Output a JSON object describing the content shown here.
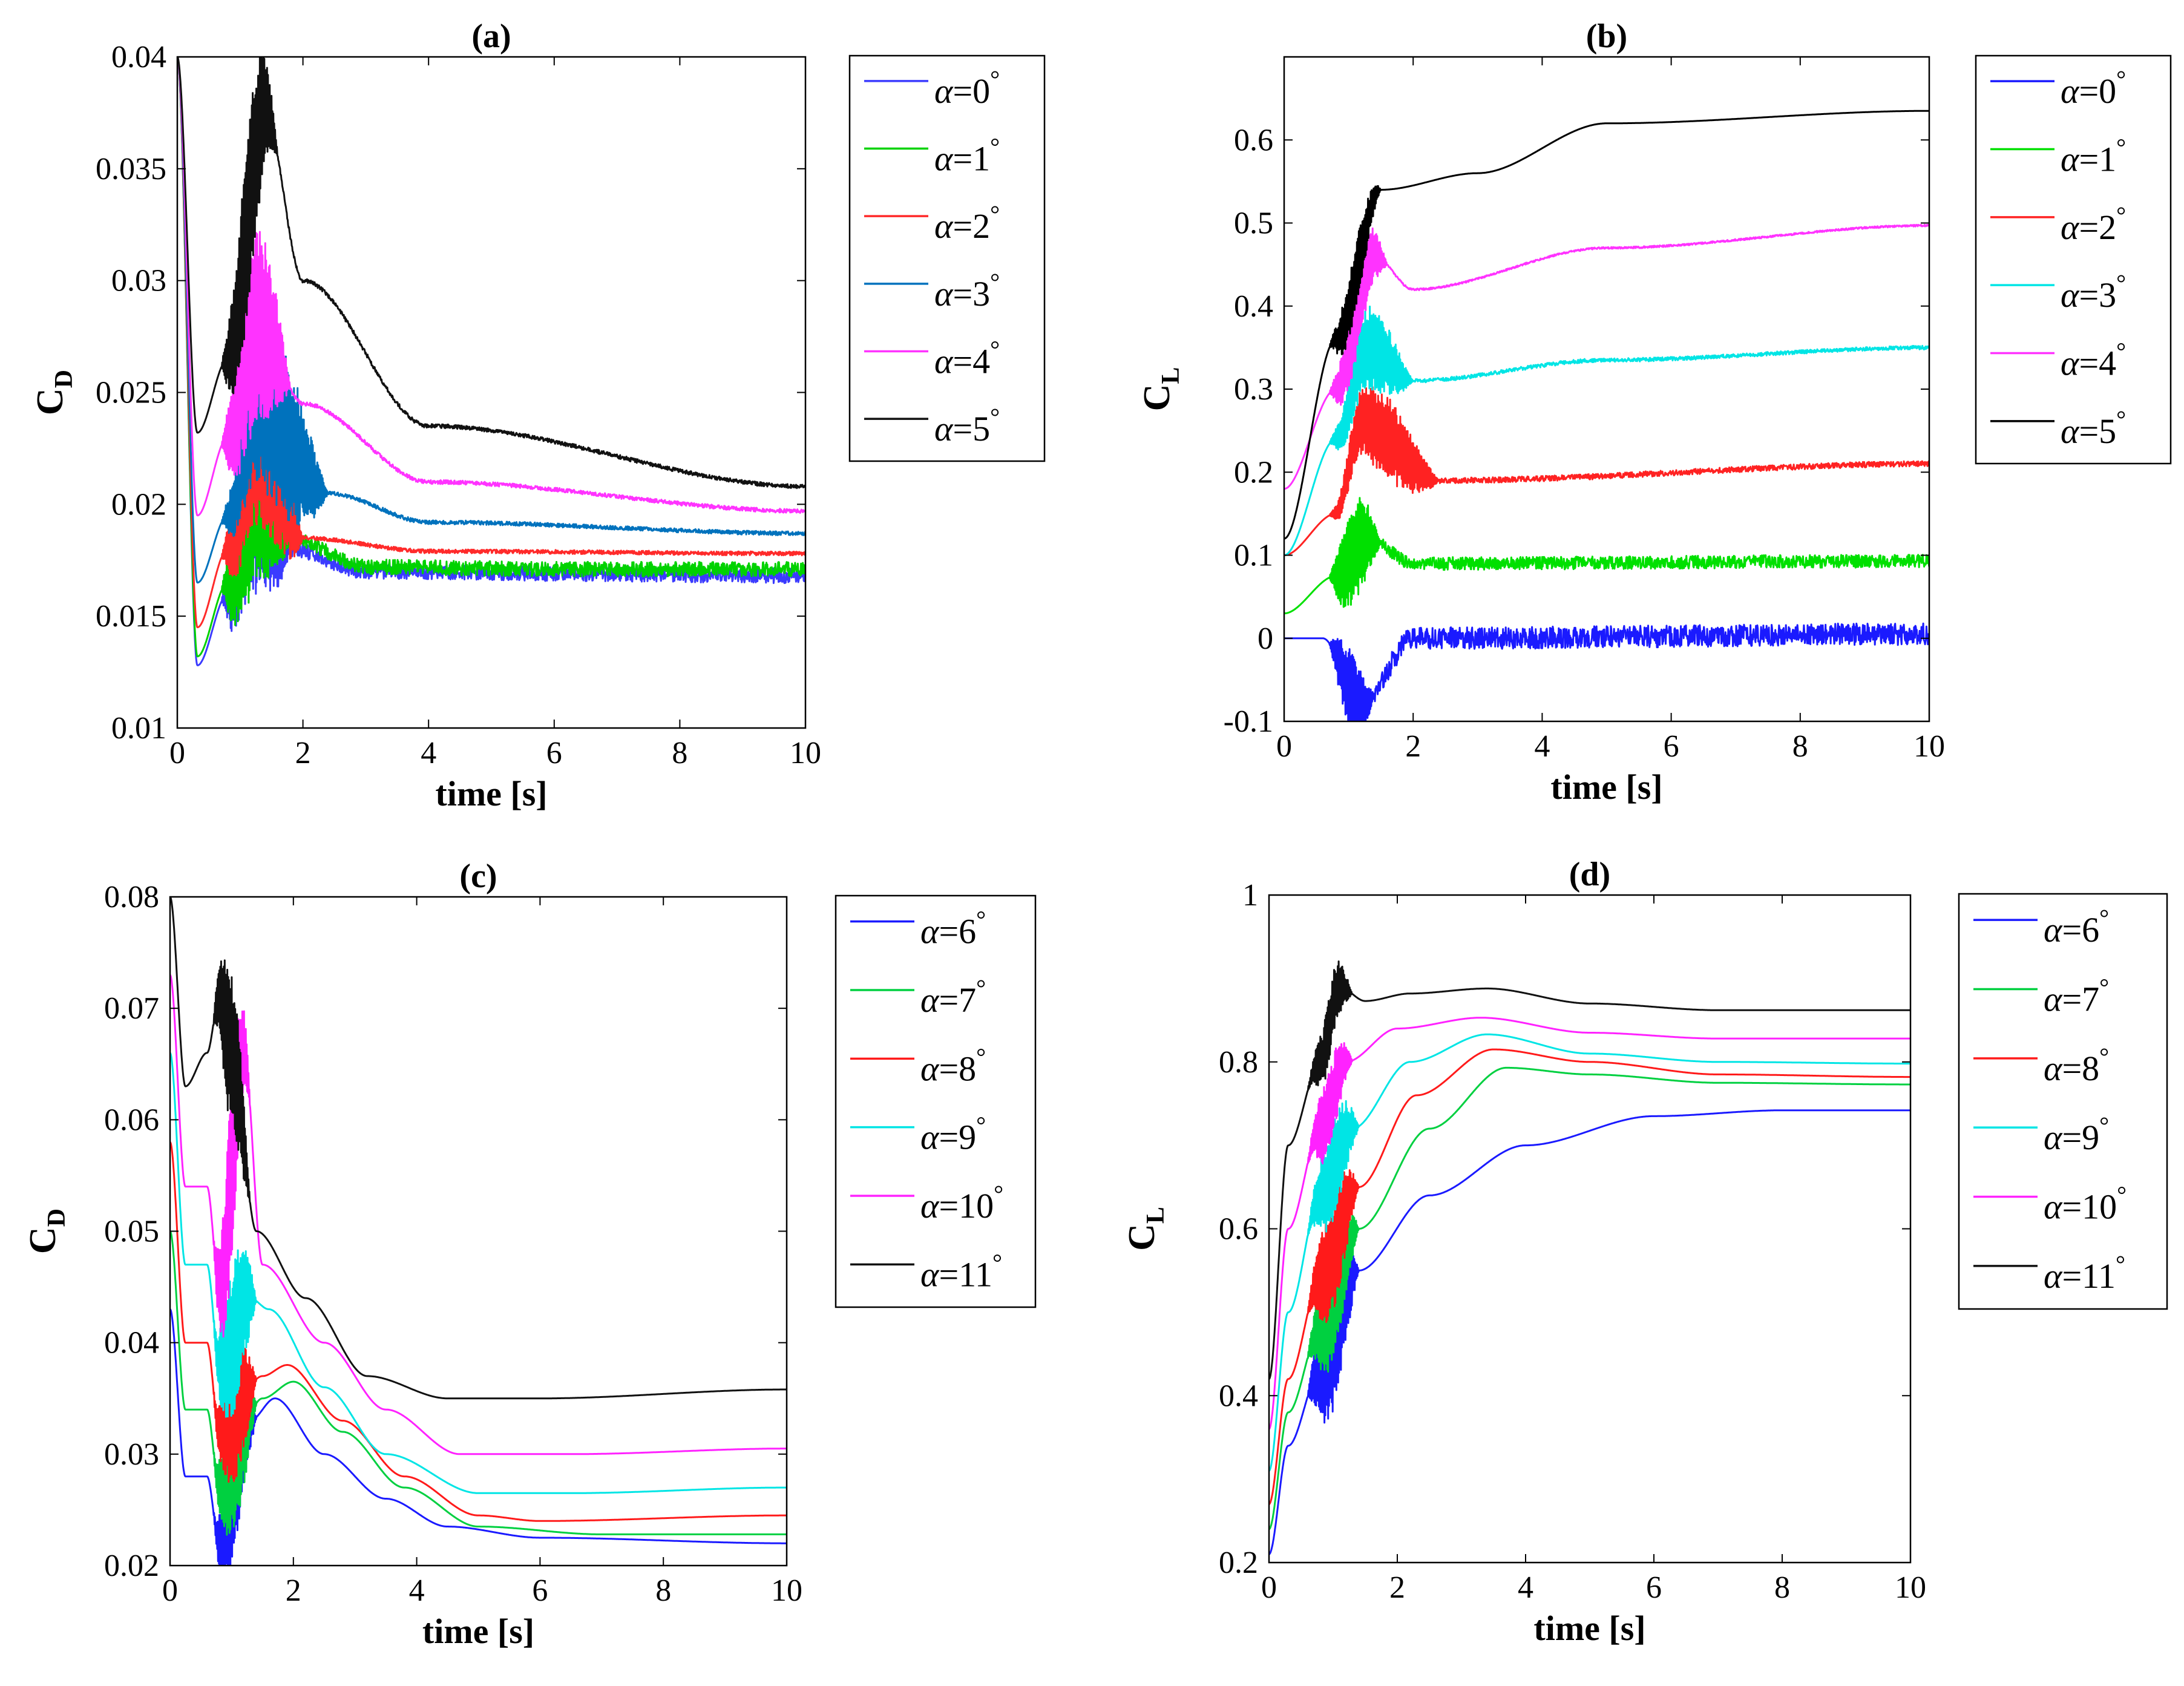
{
  "figure": {
    "panels": [
      "a",
      "b",
      "c",
      "d"
    ]
  },
  "chart_data": [
    {
      "id": "a",
      "type": "line",
      "title": "(a)",
      "xlabel": "time [s]",
      "ylabel_main": "C",
      "ylabel_sub": "D",
      "xlim": [
        0,
        10
      ],
      "ylim": [
        0.01,
        0.04
      ],
      "xticks": [
        0,
        2,
        4,
        6,
        8,
        10
      ],
      "xtick_labels": [
        "0",
        "2",
        "4",
        "6",
        "8",
        "10"
      ],
      "yticks": [
        0.01,
        0.015,
        0.02,
        0.025,
        0.03,
        0.035,
        0.04
      ],
      "ytick_labels": [
        "0.01",
        "0.015",
        "0.02",
        "0.025",
        "0.03",
        "0.035",
        "0.04"
      ],
      "legend": "outside-right",
      "grid": false,
      "series": [
        {
          "name": "α=0°",
          "color": "#3b3bff",
          "start": 0.04,
          "dip_t": 0.32,
          "dip_v": 0.0128,
          "osc_end": 1.8,
          "osc_amp": 0.0045,
          "peak_t": 1.2,
          "peak_v": 0.0215,
          "final": 0.0168,
          "tau": 0.35,
          "noise": 0.0003,
          "x": [
            0,
            0.32,
            0.8,
            1.2,
            1.8,
            3,
            6,
            10
          ],
          "y": [
            0.04,
            0.0128,
            0.016,
            0.0205,
            0.018,
            0.017,
            0.0169,
            0.0168
          ]
        },
        {
          "name": "α=1°",
          "color": "#00d200",
          "start": 0.04,
          "dip_t": 0.32,
          "dip_v": 0.0132,
          "osc_end": 1.8,
          "osc_amp": 0.0045,
          "peak_t": 1.3,
          "peak_v": 0.0215,
          "final": 0.0171,
          "tau": 0.35,
          "noise": 0.0003,
          "x": [
            0,
            0.32,
            0.8,
            1.3,
            1.8,
            3,
            6,
            10
          ],
          "y": [
            0.04,
            0.0132,
            0.0165,
            0.021,
            0.0185,
            0.0172,
            0.0171,
            0.0171
          ]
        },
        {
          "name": "α=2°",
          "color": "#ff2a2a",
          "start": 0.04,
          "dip_t": 0.32,
          "dip_v": 0.0145,
          "osc_end": 2.0,
          "osc_amp": 0.004,
          "peak_t": 1.3,
          "peak_v": 0.0235,
          "final": 0.0178,
          "tau": 0.4,
          "noise": 8e-05,
          "x": [
            0,
            0.32,
            0.8,
            1.3,
            2,
            4,
            10
          ],
          "y": [
            0.04,
            0.0145,
            0.018,
            0.023,
            0.0185,
            0.0179,
            0.0178
          ]
        },
        {
          "name": "α=3°",
          "color": "#0072bd",
          "start": 0.04,
          "dip_t": 0.32,
          "dip_v": 0.0165,
          "osc_end": 2.4,
          "osc_amp": 0.004,
          "peak_t": 1.3,
          "peak_v": 0.0245,
          "final": 0.0187,
          "tau": 0.6,
          "noise": 8e-05,
          "x": [
            0,
            0.32,
            0.8,
            1.3,
            2.4,
            4,
            10
          ],
          "y": [
            0.04,
            0.0165,
            0.0195,
            0.0245,
            0.0205,
            0.0192,
            0.0187
          ]
        },
        {
          "name": "α=4°",
          "color": "#ff33ff",
          "start": 0.04,
          "dip_t": 0.32,
          "dip_v": 0.0195,
          "osc_end": 1.8,
          "osc_amp": 0.0045,
          "peak_t": 1.3,
          "peak_v": 0.028,
          "final": 0.0197,
          "tau": 1.3,
          "noise": 8e-05,
          "x": [
            0,
            0.32,
            0.8,
            1.3,
            2,
            4,
            10
          ],
          "y": [
            0.04,
            0.0195,
            0.023,
            0.028,
            0.0245,
            0.021,
            0.0197
          ]
        },
        {
          "name": "α=5°",
          "color": "#111111",
          "start": 0.04,
          "dip_t": 0.32,
          "dip_v": 0.0232,
          "osc_end": 1.6,
          "osc_amp": 0.004,
          "peak_t": 1.4,
          "peak_v": 0.0375,
          "final": 0.0208,
          "tau": 1.6,
          "noise": 8e-05,
          "x": [
            0,
            0.32,
            0.8,
            1.4,
            2,
            4,
            10
          ],
          "y": [
            0.04,
            0.0232,
            0.0265,
            0.0375,
            0.03,
            0.0235,
            0.0208
          ]
        }
      ]
    },
    {
      "id": "b",
      "type": "line",
      "title": "(b)",
      "xlabel": "time [s]",
      "ylabel_main": "C",
      "ylabel_sub": "L",
      "xlim": [
        0,
        10
      ],
      "ylim": [
        -0.1,
        0.7
      ],
      "xticks": [
        0,
        2,
        4,
        6,
        8,
        10
      ],
      "xtick_labels": [
        "0",
        "2",
        "4",
        "6",
        "8",
        "10"
      ],
      "yticks": [
        -0.1,
        0,
        0.1,
        0.2,
        0.3,
        0.4,
        0.5,
        0.6
      ],
      "ytick_labels": [
        "-0.1",
        "0",
        "0.1",
        "0.2",
        "0.3",
        "0.4",
        "0.5",
        "0.6"
      ],
      "legend": "outside-right",
      "grid": false,
      "series": [
        {
          "name": "α=0°",
          "color": "#1a1aff",
          "start": 0.0,
          "rise_end": 0.6,
          "pre": 0.0,
          "osc_end": 1.4,
          "osc_amp": 0.05,
          "final": 0.0,
          "tau": 0.5,
          "noise": 0.012,
          "x": [
            0,
            0.6,
            1.2,
            2,
            10
          ],
          "y": [
            0,
            0,
            -0.08,
            0,
            0.005
          ]
        },
        {
          "name": "α=1°",
          "color": "#00e000",
          "start": 0.03,
          "rise_end": 0.8,
          "pre": 0.07,
          "osc_end": 1.5,
          "osc_amp": 0.06,
          "final": 0.093,
          "tau": 0.4,
          "noise": 0.007,
          "x": [
            0,
            0.8,
            1.3,
            2,
            10
          ],
          "y": [
            0.03,
            0.075,
            0.12,
            0.09,
            0.093
          ]
        },
        {
          "name": "α=2°",
          "color": "#ff2222",
          "start": 0.1,
          "rise_end": 0.8,
          "pre": 0.15,
          "osc_end": 2.4,
          "osc_amp": 0.05,
          "final": 0.21,
          "tau": 1.0,
          "noise": 0.003,
          "x": [
            0,
            0.8,
            1.2,
            2.4,
            10
          ],
          "y": [
            0.1,
            0.15,
            0.26,
            0.19,
            0.21
          ]
        },
        {
          "name": "α=3°",
          "color": "#00e5e5",
          "start": 0.1,
          "rise_end": 0.8,
          "pre": 0.24,
          "osc_end": 2.0,
          "osc_amp": 0.05,
          "final": 0.35,
          "tau": 2.2,
          "noise": 0.002,
          "x": [
            0,
            0.8,
            1.3,
            2,
            5,
            10
          ],
          "y": [
            0.1,
            0.24,
            0.35,
            0.31,
            0.335,
            0.35
          ]
        },
        {
          "name": "α=4°",
          "color": "#ff33ff",
          "start": 0.18,
          "rise_end": 0.8,
          "pre": 0.3,
          "osc_end": 1.6,
          "osc_amp": 0.05,
          "final": 0.497,
          "tau": 2.2,
          "noise": 0.001,
          "x": [
            0,
            0.8,
            1.4,
            2,
            5,
            10
          ],
          "y": [
            0.18,
            0.3,
            0.46,
            0.42,
            0.47,
            0.497
          ]
        },
        {
          "name": "α=5°",
          "color": "#000000",
          "start": 0.12,
          "rise_end": 0.8,
          "pre": 0.36,
          "osc_end": 1.5,
          "osc_amp": 0.04,
          "final": 0.635,
          "tau": 2.0,
          "noise": 0.0,
          "x": [
            0,
            0.8,
            1.5,
            3,
            5,
            10
          ],
          "y": [
            0.12,
            0.36,
            0.54,
            0.56,
            0.62,
            0.635
          ]
        }
      ]
    },
    {
      "id": "c",
      "type": "line",
      "title": "(c)",
      "xlabel": "time [s]",
      "ylabel_main": "C",
      "ylabel_sub": "D",
      "xlim": [
        0,
        10
      ],
      "ylim": [
        0.02,
        0.08
      ],
      "xticks": [
        0,
        2,
        4,
        6,
        8,
        10
      ],
      "xtick_labels": [
        "0",
        "2",
        "4",
        "6",
        "8",
        "10"
      ],
      "yticks": [
        0.02,
        0.03,
        0.04,
        0.05,
        0.06,
        0.07,
        0.08
      ],
      "ytick_labels": [
        "0.02",
        "0.03",
        "0.04",
        "0.05",
        "0.06",
        "0.07",
        "0.08"
      ],
      "legend": "outside-right",
      "grid": false,
      "series": [
        {
          "name": "α=6°",
          "color": "#1a1aff",
          "x": [
            0,
            0.25,
            0.6,
            0.8,
            1.3,
            1.7,
            2.5,
            3.5,
            4.5,
            6,
            10
          ],
          "y": [
            0.043,
            0.028,
            0.028,
            0.022,
            0.033,
            0.035,
            0.03,
            0.026,
            0.0235,
            0.0225,
            0.022
          ],
          "osc_start": 0.7,
          "osc_end": 1.4,
          "osc_amp": 0.006
        },
        {
          "name": "α=7°",
          "color": "#00d040",
          "x": [
            0,
            0.25,
            0.6,
            0.8,
            1.5,
            2.0,
            2.8,
            3.8,
            5,
            7,
            10
          ],
          "y": [
            0.05,
            0.034,
            0.034,
            0.027,
            0.035,
            0.0365,
            0.032,
            0.027,
            0.0235,
            0.0228,
            0.0228
          ],
          "osc_start": 0.7,
          "osc_end": 1.4,
          "osc_amp": 0.006
        },
        {
          "name": "α=8°",
          "color": "#ff1a1a",
          "x": [
            0,
            0.25,
            0.6,
            0.8,
            1.5,
            1.9,
            2.8,
            3.8,
            5,
            6,
            10
          ],
          "y": [
            0.058,
            0.04,
            0.04,
            0.032,
            0.037,
            0.038,
            0.033,
            0.028,
            0.0245,
            0.024,
            0.0245
          ],
          "osc_start": 0.7,
          "osc_end": 1.4,
          "osc_amp": 0.006
        },
        {
          "name": "α=9°",
          "color": "#00e5e5",
          "x": [
            0,
            0.25,
            0.6,
            0.8,
            1.3,
            1.6,
            2.5,
            3.5,
            5,
            6.5,
            10
          ],
          "y": [
            0.066,
            0.047,
            0.047,
            0.038,
            0.044,
            0.043,
            0.036,
            0.03,
            0.0265,
            0.0265,
            0.027
          ],
          "osc_start": 0.7,
          "osc_end": 1.4,
          "osc_amp": 0.007
        },
        {
          "name": "α=10°",
          "color": "#ff22ff",
          "x": [
            0,
            0.25,
            0.6,
            0.8,
            1.2,
            1.5,
            2.5,
            3.5,
            4.7,
            6.5,
            10
          ],
          "y": [
            0.073,
            0.054,
            0.054,
            0.045,
            0.066,
            0.047,
            0.04,
            0.034,
            0.03,
            0.03,
            0.0305
          ],
          "osc_start": 0.7,
          "osc_end": 1.3,
          "osc_amp": 0.008
        },
        {
          "name": "α=11°",
          "color": "#111111",
          "x": [
            0,
            0.25,
            0.6,
            0.8,
            1.0,
            1.4,
            2.2,
            3.2,
            4.5,
            6,
            10
          ],
          "y": [
            0.08,
            0.063,
            0.066,
            0.071,
            0.066,
            0.05,
            0.044,
            0.037,
            0.035,
            0.035,
            0.0358
          ],
          "osc_start": 0.7,
          "osc_end": 1.3,
          "osc_amp": 0.007
        }
      ]
    },
    {
      "id": "d",
      "type": "line",
      "title": "(d)",
      "xlabel": "time [s]",
      "ylabel_main": "C",
      "ylabel_sub": "L",
      "xlim": [
        0,
        10
      ],
      "ylim": [
        0.2,
        1.0
      ],
      "xticks": [
        0,
        2,
        4,
        6,
        8,
        10
      ],
      "xtick_labels": [
        "0",
        "2",
        "4",
        "6",
        "8",
        "10"
      ],
      "yticks": [
        0.2,
        0.4,
        0.6,
        0.8,
        1.0
      ],
      "ytick_labels": [
        "0.2",
        "0.4",
        "0.6",
        "0.8",
        "1"
      ],
      "legend": "outside-right",
      "grid": false,
      "series": [
        {
          "name": "α=6°",
          "color": "#1a1aff",
          "x": [
            0,
            0.3,
            0.8,
            1.4,
            2.5,
            4,
            6,
            8,
            10
          ],
          "y": [
            0.21,
            0.34,
            0.43,
            0.55,
            0.64,
            0.7,
            0.735,
            0.742,
            0.742
          ],
          "osc_start": 0.6,
          "osc_end": 1.4,
          "osc_amp": 0.08
        },
        {
          "name": "α=7°",
          "color": "#00d040",
          "x": [
            0,
            0.3,
            0.8,
            1.4,
            2.5,
            3.7,
            5,
            7,
            10
          ],
          "y": [
            0.24,
            0.38,
            0.48,
            0.6,
            0.72,
            0.793,
            0.785,
            0.775,
            0.773
          ],
          "osc_start": 0.6,
          "osc_end": 1.4,
          "osc_amp": 0.07
        },
        {
          "name": "α=8°",
          "color": "#ff1a1a",
          "x": [
            0,
            0.3,
            0.8,
            1.4,
            2.3,
            3.5,
            5,
            7,
            10
          ],
          "y": [
            0.27,
            0.42,
            0.54,
            0.65,
            0.76,
            0.815,
            0.8,
            0.785,
            0.782
          ],
          "osc_start": 0.6,
          "osc_end": 1.4,
          "osc_amp": 0.07
        },
        {
          "name": "α=9°",
          "color": "#00e5e5",
          "x": [
            0,
            0.3,
            0.8,
            1.3,
            2.2,
            3.4,
            5,
            7,
            10
          ],
          "y": [
            0.31,
            0.5,
            0.64,
            0.72,
            0.8,
            0.833,
            0.81,
            0.8,
            0.798
          ],
          "osc_start": 0.6,
          "osc_end": 1.4,
          "osc_amp": 0.06
        },
        {
          "name": "α=10°",
          "color": "#ff22ff",
          "x": [
            0,
            0.3,
            0.8,
            1.2,
            2.0,
            3.3,
            5,
            7,
            10
          ],
          "y": [
            0.36,
            0.6,
            0.72,
            0.8,
            0.84,
            0.853,
            0.835,
            0.828,
            0.828
          ],
          "osc_start": 0.6,
          "osc_end": 1.3,
          "osc_amp": 0.05
        },
        {
          "name": "α=11°",
          "color": "#111111",
          "x": [
            0,
            0.3,
            0.8,
            1.1,
            1.5,
            2.2,
            3.4,
            5,
            7,
            10
          ],
          "y": [
            0.42,
            0.7,
            0.8,
            0.89,
            0.873,
            0.882,
            0.888,
            0.87,
            0.862,
            0.862
          ],
          "osc_start": 0.6,
          "osc_end": 1.3,
          "osc_amp": 0.04
        }
      ]
    }
  ]
}
